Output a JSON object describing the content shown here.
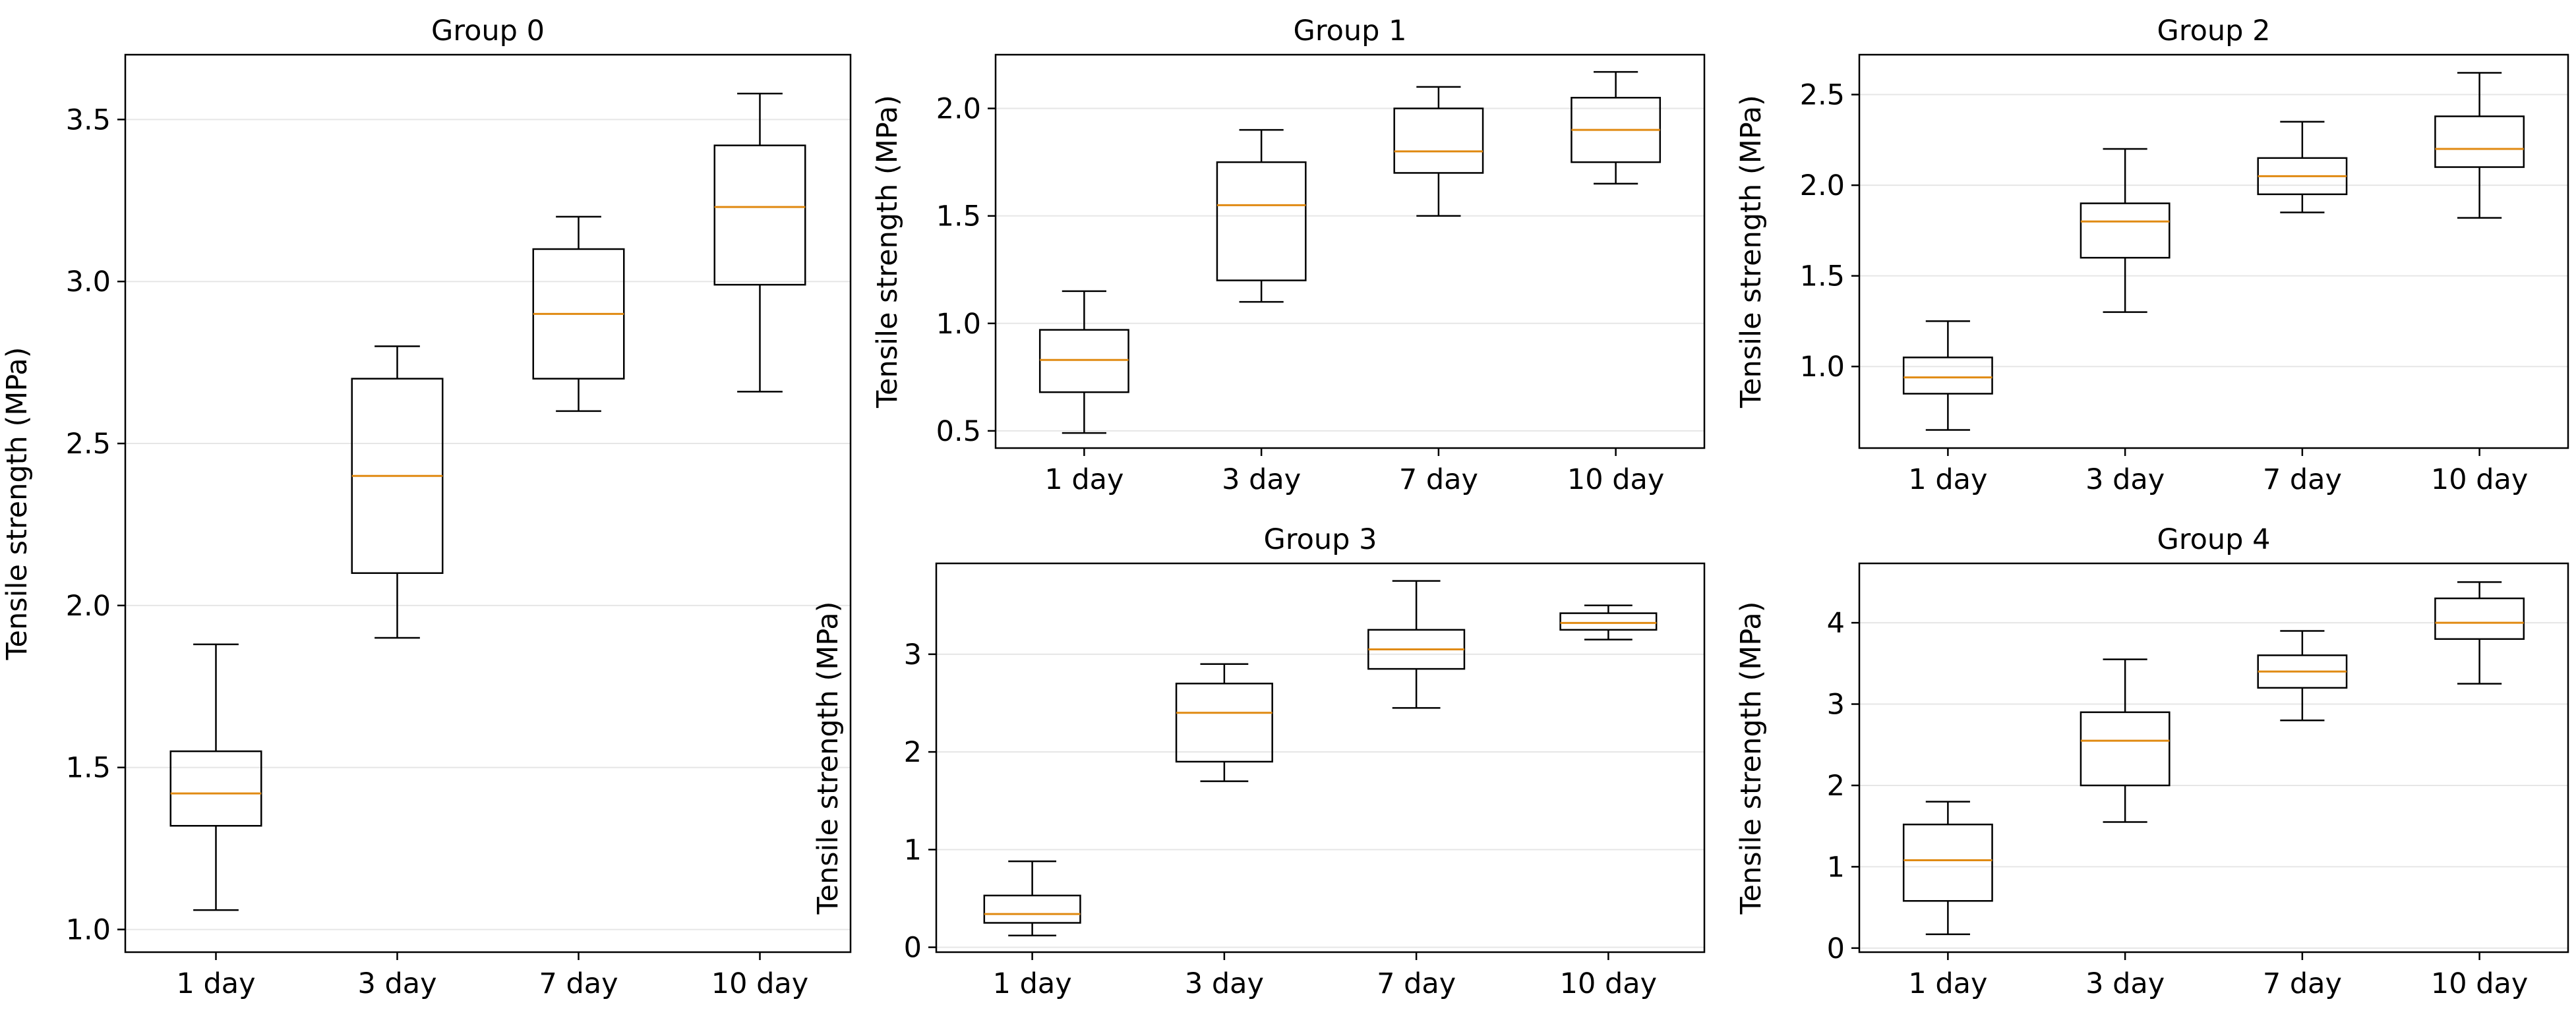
{
  "colors": {
    "median": "#e08a12",
    "box": "#000000",
    "grid": "#e6e6e6",
    "background": "#ffffff"
  },
  "chart_data": [
    {
      "type": "box",
      "title": "Group 0",
      "xlabel": "",
      "ylabel": "Tensile strength (MPa)",
      "categories": [
        "1 day",
        "3 day",
        "7 day",
        "10 day"
      ],
      "ylim": [
        0.93,
        3.7
      ],
      "yticks": [
        1.0,
        1.5,
        2.0,
        2.5,
        3.0,
        3.5
      ],
      "ytick_labels": [
        "1.0",
        "1.5",
        "2.0",
        "2.5",
        "3.0",
        "3.5"
      ],
      "grid": "y",
      "boxes": [
        {
          "min": 1.06,
          "q1": 1.32,
          "median": 1.42,
          "q3": 1.55,
          "max": 1.88
        },
        {
          "min": 1.9,
          "q1": 2.1,
          "median": 2.4,
          "q3": 2.7,
          "max": 2.8
        },
        {
          "min": 2.6,
          "q1": 2.7,
          "median": 2.9,
          "q3": 3.1,
          "max": 3.2
        },
        {
          "min": 2.66,
          "q1": 2.99,
          "median": 3.23,
          "q3": 3.42,
          "max": 3.58
        }
      ]
    },
    {
      "type": "box",
      "title": "Group 1",
      "xlabel": "",
      "ylabel": "Tensile strength (MPa)",
      "categories": [
        "1 day",
        "3 day",
        "7 day",
        "10 day"
      ],
      "ylim": [
        0.42,
        2.25
      ],
      "yticks": [
        0.5,
        1.0,
        1.5,
        2.0
      ],
      "ytick_labels": [
        "0.5",
        "1.0",
        "1.5",
        "2.0"
      ],
      "grid": "y",
      "boxes": [
        {
          "min": 0.49,
          "q1": 0.68,
          "median": 0.83,
          "q3": 0.97,
          "max": 1.15
        },
        {
          "min": 1.1,
          "q1": 1.2,
          "median": 1.55,
          "q3": 1.75,
          "max": 1.9
        },
        {
          "min": 1.5,
          "q1": 1.7,
          "median": 1.8,
          "q3": 2.0,
          "max": 2.1
        },
        {
          "min": 1.65,
          "q1": 1.75,
          "median": 1.9,
          "q3": 2.05,
          "max": 2.17
        }
      ]
    },
    {
      "type": "box",
      "title": "Group 2",
      "xlabel": "",
      "ylabel": "Tensile strength (MPa)",
      "categories": [
        "1 day",
        "3 day",
        "7 day",
        "10 day"
      ],
      "ylim": [
        0.55,
        2.72
      ],
      "yticks": [
        1.0,
        1.5,
        2.0,
        2.5
      ],
      "ytick_labels": [
        "1.0",
        "1.5",
        "2.0",
        "2.5"
      ],
      "grid": "y",
      "boxes": [
        {
          "min": 0.65,
          "q1": 0.85,
          "median": 0.94,
          "q3": 1.05,
          "max": 1.25
        },
        {
          "min": 1.3,
          "q1": 1.6,
          "median": 1.8,
          "q3": 1.9,
          "max": 2.2
        },
        {
          "min": 1.85,
          "q1": 1.95,
          "median": 2.05,
          "q3": 2.15,
          "max": 2.35
        },
        {
          "min": 1.82,
          "q1": 2.1,
          "median": 2.2,
          "q3": 2.38,
          "max": 2.62
        }
      ]
    },
    {
      "type": "box",
      "title": "Group 3",
      "xlabel": "",
      "ylabel": "Tensile strength (MPa)",
      "categories": [
        "1 day",
        "3 day",
        "7 day",
        "10 day"
      ],
      "ylim": [
        -0.05,
        3.93
      ],
      "yticks": [
        0,
        1,
        2,
        3
      ],
      "ytick_labels": [
        "0",
        "1",
        "2",
        "3"
      ],
      "grid": "y",
      "boxes": [
        {
          "min": 0.12,
          "q1": 0.25,
          "median": 0.34,
          "q3": 0.53,
          "max": 0.88
        },
        {
          "min": 1.7,
          "q1": 1.9,
          "median": 2.4,
          "q3": 2.7,
          "max": 2.9
        },
        {
          "min": 2.45,
          "q1": 2.85,
          "median": 3.05,
          "q3": 3.25,
          "max": 3.75
        },
        {
          "min": 3.15,
          "q1": 3.25,
          "median": 3.32,
          "q3": 3.42,
          "max": 3.5
        }
      ]
    },
    {
      "type": "box",
      "title": "Group 4",
      "xlabel": "",
      "ylabel": "Tensile strength (MPa)",
      "categories": [
        "1 day",
        "3 day",
        "7 day",
        "10 day"
      ],
      "ylim": [
        -0.05,
        4.73
      ],
      "yticks": [
        0,
        1,
        2,
        3,
        4
      ],
      "ytick_labels": [
        "0",
        "1",
        "2",
        "3",
        "4"
      ],
      "grid": "y",
      "boxes": [
        {
          "min": 0.17,
          "q1": 0.58,
          "median": 1.08,
          "q3": 1.52,
          "max": 1.8
        },
        {
          "min": 1.55,
          "q1": 2.0,
          "median": 2.55,
          "q3": 2.9,
          "max": 3.55
        },
        {
          "min": 2.8,
          "q1": 3.2,
          "median": 3.4,
          "q3": 3.6,
          "max": 3.9
        },
        {
          "min": 3.25,
          "q1": 3.8,
          "median": 4.0,
          "q3": 4.3,
          "max": 4.5
        }
      ]
    }
  ]
}
